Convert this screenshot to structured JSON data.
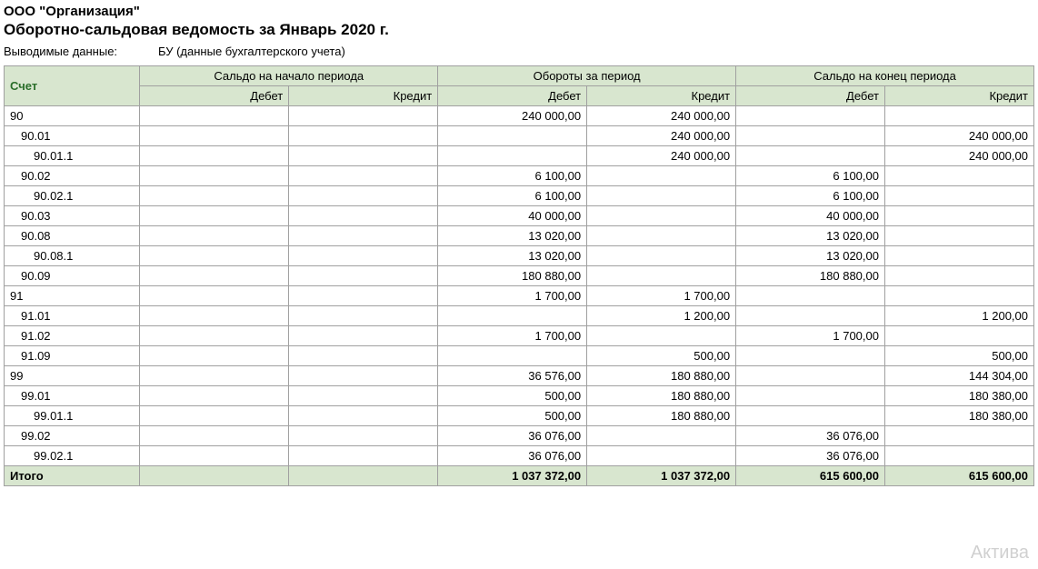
{
  "header": {
    "org_name": "ООО \"Организация\"",
    "report_title": "Оборотно-сальдовая ведомость за Январь 2020 г.",
    "meta_label": "Выводимые данные:",
    "meta_value": "БУ (данные бухгалтерского учета)"
  },
  "table": {
    "columns": {
      "account": "Счет",
      "opening": "Сальдо на начало периода",
      "turnover": "Обороты за период",
      "closing": "Сальдо на конец периода",
      "debit": "Дебет",
      "credit": "Кредит"
    },
    "rows": [
      {
        "account": "90",
        "indent": 0,
        "open_d": "",
        "open_c": "",
        "turn_d": "240 000,00",
        "turn_c": "240 000,00",
        "close_d": "",
        "close_c": ""
      },
      {
        "account": "90.01",
        "indent": 1,
        "open_d": "",
        "open_c": "",
        "turn_d": "",
        "turn_c": "240 000,00",
        "close_d": "",
        "close_c": "240 000,00"
      },
      {
        "account": "90.01.1",
        "indent": 2,
        "open_d": "",
        "open_c": "",
        "turn_d": "",
        "turn_c": "240 000,00",
        "close_d": "",
        "close_c": "240 000,00"
      },
      {
        "account": "90.02",
        "indent": 1,
        "open_d": "",
        "open_c": "",
        "turn_d": "6 100,00",
        "turn_c": "",
        "close_d": "6 100,00",
        "close_c": ""
      },
      {
        "account": "90.02.1",
        "indent": 2,
        "open_d": "",
        "open_c": "",
        "turn_d": "6 100,00",
        "turn_c": "",
        "close_d": "6 100,00",
        "close_c": ""
      },
      {
        "account": "90.03",
        "indent": 1,
        "open_d": "",
        "open_c": "",
        "turn_d": "40 000,00",
        "turn_c": "",
        "close_d": "40 000,00",
        "close_c": ""
      },
      {
        "account": "90.08",
        "indent": 1,
        "open_d": "",
        "open_c": "",
        "turn_d": "13 020,00",
        "turn_c": "",
        "close_d": "13 020,00",
        "close_c": ""
      },
      {
        "account": "90.08.1",
        "indent": 2,
        "open_d": "",
        "open_c": "",
        "turn_d": "13 020,00",
        "turn_c": "",
        "close_d": "13 020,00",
        "close_c": ""
      },
      {
        "account": "90.09",
        "indent": 1,
        "open_d": "",
        "open_c": "",
        "turn_d": "180 880,00",
        "turn_c": "",
        "close_d": "180 880,00",
        "close_c": ""
      },
      {
        "account": "91",
        "indent": 0,
        "open_d": "",
        "open_c": "",
        "turn_d": "1 700,00",
        "turn_c": "1 700,00",
        "close_d": "",
        "close_c": ""
      },
      {
        "account": "91.01",
        "indent": 1,
        "open_d": "",
        "open_c": "",
        "turn_d": "",
        "turn_c": "1 200,00",
        "close_d": "",
        "close_c": "1 200,00"
      },
      {
        "account": "91.02",
        "indent": 1,
        "open_d": "",
        "open_c": "",
        "turn_d": "1 700,00",
        "turn_c": "",
        "close_d": "1 700,00",
        "close_c": ""
      },
      {
        "account": "91.09",
        "indent": 1,
        "open_d": "",
        "open_c": "",
        "turn_d": "",
        "turn_c": "500,00",
        "close_d": "",
        "close_c": "500,00"
      },
      {
        "account": "99",
        "indent": 0,
        "open_d": "",
        "open_c": "",
        "turn_d": "36 576,00",
        "turn_c": "180 880,00",
        "close_d": "",
        "close_c": "144 304,00"
      },
      {
        "account": "99.01",
        "indent": 1,
        "open_d": "",
        "open_c": "",
        "turn_d": "500,00",
        "turn_c": "180 880,00",
        "close_d": "",
        "close_c": "180 380,00"
      },
      {
        "account": "99.01.1",
        "indent": 2,
        "open_d": "",
        "open_c": "",
        "turn_d": "500,00",
        "turn_c": "180 880,00",
        "close_d": "",
        "close_c": "180 380,00"
      },
      {
        "account": "99.02",
        "indent": 1,
        "open_d": "",
        "open_c": "",
        "turn_d": "36 076,00",
        "turn_c": "",
        "close_d": "36 076,00",
        "close_c": ""
      },
      {
        "account": "99.02.1",
        "indent": 2,
        "open_d": "",
        "open_c": "",
        "turn_d": "36 076,00",
        "turn_c": "",
        "close_d": "36 076,00",
        "close_c": ""
      }
    ],
    "total": {
      "label": "Итого",
      "open_d": "",
      "open_c": "",
      "turn_d": "1 037 372,00",
      "turn_c": "1 037 372,00",
      "close_d": "615 600,00",
      "close_c": "615 600,00"
    }
  },
  "styling": {
    "header_bg": "#d8e6cf",
    "border_color": "#a0a0a0",
    "account_header_color": "#2a6e2a",
    "font_family": "Arial, sans-serif",
    "base_font_size": 13,
    "title_font_size": 17,
    "org_font_size": 15
  },
  "watermark": "Актива"
}
